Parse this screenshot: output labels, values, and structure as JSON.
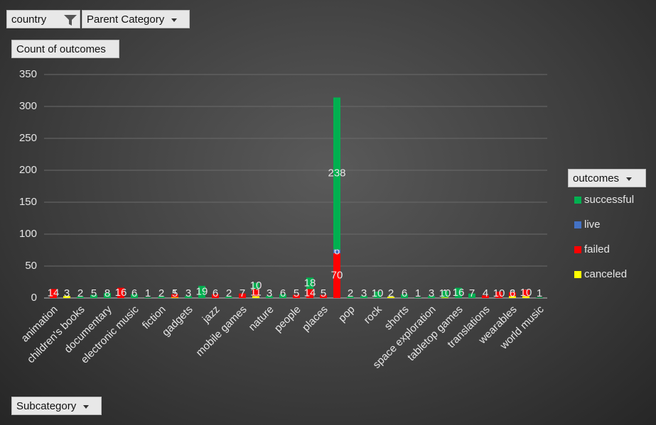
{
  "chart_data": {
    "type": "bar",
    "stacked": true,
    "filters": [
      "country",
      "Parent Category"
    ],
    "ylabel": "Count of outcomes",
    "xlabel": "Subcategory",
    "legend_title": "outcomes",
    "categories": [
      "animation",
      null,
      "children's books",
      null,
      "documentary",
      null,
      "electronic music",
      null,
      "fiction",
      null,
      "gadgets",
      null,
      "jazz",
      null,
      "mobile games",
      null,
      "nature",
      null,
      "people",
      null,
      "places",
      null,
      "pop",
      null,
      "rock",
      null,
      "shorts",
      null,
      "space exploration",
      null,
      "tabletop games",
      null,
      "translations",
      null,
      "wearables",
      null,
      "world music"
    ],
    "series": [
      {
        "name": "successful",
        "color": "#00b050",
        "values": [
          null,
          null,
          2,
          5,
          8,
          null,
          6,
          1,
          2,
          null,
          3,
          19,
          null,
          2,
          null,
          10,
          3,
          6,
          null,
          18,
          null,
          238,
          2,
          3,
          10,
          null,
          6,
          1,
          3,
          10,
          16,
          7,
          null,
          null,
          null,
          null,
          1
        ]
      },
      {
        "name": "live",
        "color": "#4472c4",
        "values": [
          null,
          null,
          null,
          null,
          null,
          null,
          null,
          null,
          null,
          null,
          null,
          null,
          null,
          null,
          null,
          null,
          null,
          null,
          null,
          null,
          null,
          6,
          null,
          null,
          null,
          null,
          null,
          null,
          null,
          null,
          null,
          null,
          null,
          null,
          null,
          null,
          null
        ]
      },
      {
        "name": "failed",
        "color": "#ff0000",
        "values": [
          14,
          null,
          null,
          null,
          null,
          16,
          null,
          null,
          null,
          5,
          null,
          null,
          6,
          null,
          7,
          11,
          null,
          null,
          5,
          14,
          5,
          70,
          null,
          null,
          null,
          null,
          null,
          null,
          null,
          null,
          null,
          null,
          4,
          10,
          6,
          10,
          null
        ]
      },
      {
        "name": "canceled",
        "color": "#ffff00",
        "values": [
          null,
          3,
          null,
          null,
          null,
          null,
          null,
          null,
          null,
          1,
          null,
          null,
          null,
          null,
          null,
          3,
          null,
          null,
          null,
          null,
          null,
          null,
          null,
          null,
          null,
          2,
          null,
          null,
          null,
          1,
          null,
          null,
          null,
          null,
          3,
          3,
          null
        ]
      }
    ],
    "ylim": [
      0,
      350
    ],
    "yticks": [
      0,
      50,
      100,
      150,
      200,
      250,
      300,
      350
    ],
    "grid": true,
    "legend": "right"
  }
}
